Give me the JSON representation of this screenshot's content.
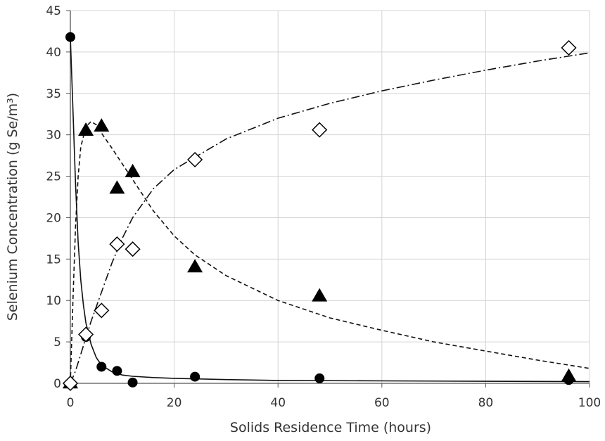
{
  "chart_data": {
    "type": "scatter",
    "xlabel": "Solids Residence Time (hours)",
    "ylabel": "Selenium Concentration (g Se/m³)",
    "xlim": [
      0,
      100
    ],
    "ylim": [
      0,
      45
    ],
    "x_ticks": [
      "0",
      "20",
      "40",
      "60",
      "80",
      "100"
    ],
    "y_ticks": [
      "0",
      "5",
      "10",
      "15",
      "20",
      "25",
      "30",
      "35",
      "40",
      "45"
    ],
    "grid": true,
    "legend": "none",
    "series": [
      {
        "marker": "filled-circle",
        "line_style": "solid",
        "points": [
          [
            0,
            41.8
          ],
          [
            3,
            5.6
          ],
          [
            6,
            2.0
          ],
          [
            9,
            1.5
          ],
          [
            12,
            0.1
          ],
          [
            24,
            0.8
          ],
          [
            48,
            0.6
          ],
          [
            96,
            0.4
          ]
        ],
        "fit_curve": [
          [
            0,
            41.8
          ],
          [
            0.5,
            33
          ],
          [
            1,
            24
          ],
          [
            1.5,
            17
          ],
          [
            2,
            12.5
          ],
          [
            2.5,
            9.5
          ],
          [
            3,
            7.3
          ],
          [
            4,
            4.7
          ],
          [
            5,
            3.1
          ],
          [
            6,
            2.2
          ],
          [
            8,
            1.4
          ],
          [
            10,
            1.0
          ],
          [
            12,
            0.85
          ],
          [
            16,
            0.7
          ],
          [
            20,
            0.6
          ],
          [
            30,
            0.45
          ],
          [
            40,
            0.35
          ],
          [
            60,
            0.3
          ],
          [
            80,
            0.25
          ],
          [
            100,
            0.2
          ]
        ]
      },
      {
        "marker": "filled-triangle",
        "line_style": "dashed",
        "points": [
          [
            0,
            0
          ],
          [
            3,
            30.5
          ],
          [
            6,
            31.0
          ],
          [
            9,
            23.5
          ],
          [
            12,
            25.5
          ],
          [
            24,
            14.0
          ],
          [
            48,
            10.5
          ],
          [
            96,
            0.8
          ]
        ],
        "fit_curve": [
          [
            0,
            0
          ],
          [
            0.5,
            10
          ],
          [
            1,
            19
          ],
          [
            1.5,
            25
          ],
          [
            2,
            28.5
          ],
          [
            3,
            31.0
          ],
          [
            4,
            31.6
          ],
          [
            5,
            31.2
          ],
          [
            6,
            30.2
          ],
          [
            8,
            28.4
          ],
          [
            10,
            26.5
          ],
          [
            12,
            24.6
          ],
          [
            16,
            20.8
          ],
          [
            20,
            17.8
          ],
          [
            24,
            15.5
          ],
          [
            30,
            13.0
          ],
          [
            40,
            10.0
          ],
          [
            50,
            7.9
          ],
          [
            60,
            6.4
          ],
          [
            70,
            5.0
          ],
          [
            80,
            3.9
          ],
          [
            90,
            2.8
          ],
          [
            100,
            1.8
          ]
        ]
      },
      {
        "marker": "open-diamond",
        "line_style": "dash-dot",
        "points": [
          [
            0,
            0
          ],
          [
            3,
            5.9
          ],
          [
            6,
            8.8
          ],
          [
            9,
            16.8
          ],
          [
            12,
            16.2
          ],
          [
            24,
            27.0
          ],
          [
            48,
            30.6
          ],
          [
            96,
            40.5
          ]
        ],
        "fit_curve": [
          [
            0,
            0
          ],
          [
            1,
            1.5
          ],
          [
            2,
            3.5
          ],
          [
            3,
            5.5
          ],
          [
            4,
            7.5
          ],
          [
            6,
            11.0
          ],
          [
            8,
            14.5
          ],
          [
            10,
            17.5
          ],
          [
            12,
            20.0
          ],
          [
            16,
            23.5
          ],
          [
            20,
            25.8
          ],
          [
            24,
            27.3
          ],
          [
            30,
            29.5
          ],
          [
            40,
            32.0
          ],
          [
            50,
            33.8
          ],
          [
            60,
            35.3
          ],
          [
            70,
            36.6
          ],
          [
            80,
            37.8
          ],
          [
            90,
            38.9
          ],
          [
            100,
            39.9
          ]
        ]
      }
    ]
  }
}
